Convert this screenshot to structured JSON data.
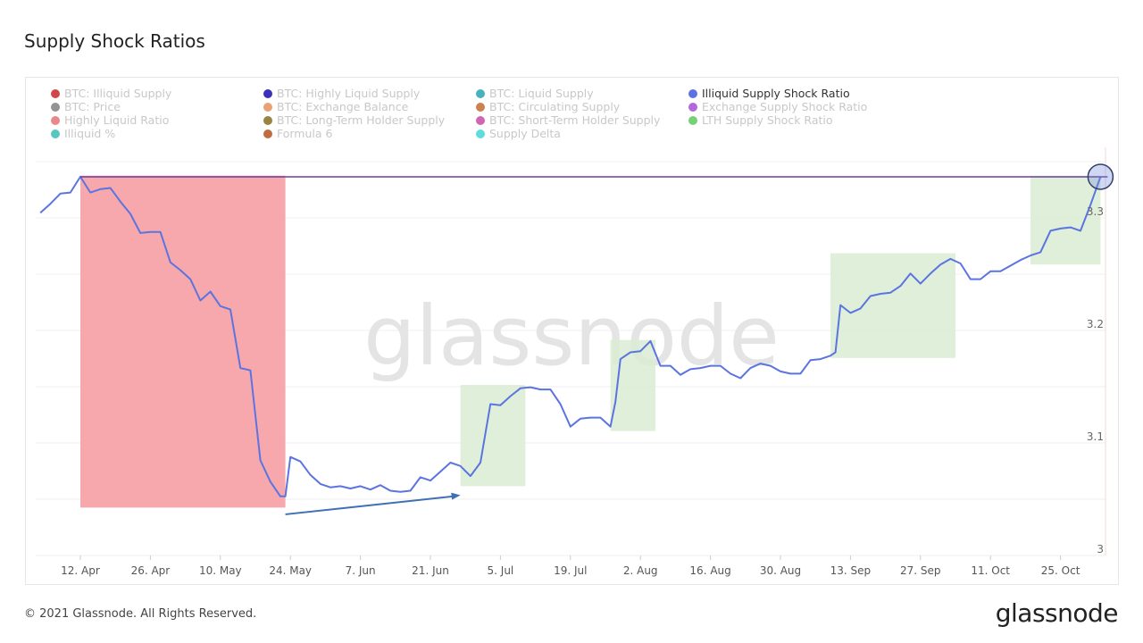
{
  "footer": {
    "copyright": "© 2021 Glassnode. All Rights Reserved.",
    "logo": "glassnode"
  },
  "watermark": "glassnode",
  "chart_data": {
    "type": "line",
    "title": "Supply Shock Ratios",
    "legend": [
      {
        "name": "BTC: Illiquid Supply",
        "color": "#c62828",
        "active": false
      },
      {
        "name": "BTC: Highly Liquid Supply",
        "color": "#1a0dab",
        "active": false
      },
      {
        "name": "BTC: Liquid Supply",
        "color": "#26a6b0",
        "active": false
      },
      {
        "name": "Illiquid Supply Shock Ratio",
        "color": "#5b74e0",
        "active": true
      },
      {
        "name": "BTC: Price",
        "color": "#808080",
        "active": false
      },
      {
        "name": "BTC: Exchange Balance",
        "color": "#e8905c",
        "active": false
      },
      {
        "name": "BTC: Circulating Supply",
        "color": "#c56a30",
        "active": false
      },
      {
        "name": "Exchange Supply Shock Ratio",
        "color": "#a64fd6",
        "active": false
      },
      {
        "name": "Highly Liquid Ratio",
        "color": "#e57373",
        "active": false
      },
      {
        "name": "BTC: Long-Term Holder Supply",
        "color": "#8a6d22",
        "active": false
      },
      {
        "name": "BTC: Short-Term Holder Supply",
        "color": "#c94aa5",
        "active": false
      },
      {
        "name": "LTH Supply Shock Ratio",
        "color": "#5cc95c",
        "active": false
      },
      {
        "name": "Illiquid %",
        "color": "#3bbdb5",
        "active": false
      },
      {
        "name": "Formula 6",
        "color": "#b5521f",
        "active": false
      },
      {
        "name": "Supply Delta",
        "color": "#45d6d6",
        "active": false
      }
    ],
    "legend_placement": "top",
    "x_ticks": [
      "12. Apr",
      "26. Apr",
      "10. May",
      "24. May",
      "7. Jun",
      "21. Jun",
      "5. Jul",
      "19. Jul",
      "2. Aug",
      "16. Aug",
      "30. Aug",
      "13. Sep",
      "27. Sep",
      "11. Oct",
      "25. Oct"
    ],
    "x_tick_dates": [
      "2021-04-12",
      "2021-04-26",
      "2021-05-10",
      "2021-05-24",
      "2021-06-07",
      "2021-06-21",
      "2021-07-05",
      "2021-07-19",
      "2021-08-02",
      "2021-08-16",
      "2021-08-30",
      "2021-09-13",
      "2021-09-27",
      "2021-10-11",
      "2021-10-25"
    ],
    "xlim": [
      "2021-04-04",
      "2021-11-03"
    ],
    "y_ticks": [
      "3",
      "3.1",
      "3.2",
      "3.3"
    ],
    "ylim": [
      3.0,
      3.36
    ],
    "y_axis_side": "right",
    "grid": true,
    "series": [
      {
        "name": "Illiquid Supply Shock Ratio",
        "color": "#5b74e0",
        "points": [
          [
            "2021-04-04",
            3.299
          ],
          [
            "2021-04-06",
            3.307
          ],
          [
            "2021-04-08",
            3.316
          ],
          [
            "2021-04-10",
            3.317
          ],
          [
            "2021-04-12",
            3.331
          ],
          [
            "2021-04-14",
            3.317
          ],
          [
            "2021-04-16",
            3.32
          ],
          [
            "2021-04-18",
            3.321
          ],
          [
            "2021-04-20",
            3.309
          ],
          [
            "2021-04-22",
            3.298
          ],
          [
            "2021-04-24",
            3.281
          ],
          [
            "2021-04-26",
            3.282
          ],
          [
            "2021-04-28",
            3.282
          ],
          [
            "2021-04-30",
            3.255
          ],
          [
            "2021-05-02",
            3.248
          ],
          [
            "2021-05-04",
            3.24
          ],
          [
            "2021-05-06",
            3.221
          ],
          [
            "2021-05-08",
            3.229
          ],
          [
            "2021-05-10",
            3.216
          ],
          [
            "2021-05-12",
            3.213
          ],
          [
            "2021-05-14",
            3.161
          ],
          [
            "2021-05-16",
            3.159
          ],
          [
            "2021-05-18",
            3.079
          ],
          [
            "2021-05-20",
            3.06
          ],
          [
            "2021-05-22",
            3.047
          ],
          [
            "2021-05-23",
            3.047
          ],
          [
            "2021-05-24",
            3.082
          ],
          [
            "2021-05-26",
            3.078
          ],
          [
            "2021-05-28",
            3.066
          ],
          [
            "2021-05-30",
            3.058
          ],
          [
            "2021-06-01",
            3.055
          ],
          [
            "2021-06-03",
            3.056
          ],
          [
            "2021-06-05",
            3.054
          ],
          [
            "2021-06-07",
            3.056
          ],
          [
            "2021-06-09",
            3.053
          ],
          [
            "2021-06-11",
            3.057
          ],
          [
            "2021-06-13",
            3.052
          ],
          [
            "2021-06-15",
            3.051
          ],
          [
            "2021-06-17",
            3.052
          ],
          [
            "2021-06-19",
            3.064
          ],
          [
            "2021-06-21",
            3.061
          ],
          [
            "2021-06-23",
            3.069
          ],
          [
            "2021-06-25",
            3.077
          ],
          [
            "2021-06-27",
            3.074
          ],
          [
            "2021-06-29",
            3.065
          ],
          [
            "2021-07-01",
            3.077
          ],
          [
            "2021-07-03",
            3.129
          ],
          [
            "2021-07-05",
            3.128
          ],
          [
            "2021-07-07",
            3.136
          ],
          [
            "2021-07-09",
            3.143
          ],
          [
            "2021-07-11",
            3.144
          ],
          [
            "2021-07-13",
            3.142
          ],
          [
            "2021-07-15",
            3.142
          ],
          [
            "2021-07-17",
            3.129
          ],
          [
            "2021-07-19",
            3.109
          ],
          [
            "2021-07-21",
            3.116
          ],
          [
            "2021-07-23",
            3.117
          ],
          [
            "2021-07-25",
            3.117
          ],
          [
            "2021-07-27",
            3.109
          ],
          [
            "2021-07-28",
            3.131
          ],
          [
            "2021-07-29",
            3.169
          ],
          [
            "2021-07-31",
            3.175
          ],
          [
            "2021-08-02",
            3.176
          ],
          [
            "2021-08-04",
            3.185
          ],
          [
            "2021-08-06",
            3.163
          ],
          [
            "2021-08-08",
            3.163
          ],
          [
            "2021-08-10",
            3.155
          ],
          [
            "2021-08-12",
            3.16
          ],
          [
            "2021-08-14",
            3.161
          ],
          [
            "2021-08-16",
            3.163
          ],
          [
            "2021-08-18",
            3.163
          ],
          [
            "2021-08-20",
            3.156
          ],
          [
            "2021-08-22",
            3.152
          ],
          [
            "2021-08-24",
            3.161
          ],
          [
            "2021-08-26",
            3.165
          ],
          [
            "2021-08-28",
            3.163
          ],
          [
            "2021-08-30",
            3.158
          ],
          [
            "2021-09-01",
            3.156
          ],
          [
            "2021-09-03",
            3.156
          ],
          [
            "2021-09-05",
            3.168
          ],
          [
            "2021-09-07",
            3.169
          ],
          [
            "2021-09-09",
            3.172
          ],
          [
            "2021-09-10",
            3.175
          ],
          [
            "2021-09-11",
            3.217
          ],
          [
            "2021-09-13",
            3.21
          ],
          [
            "2021-09-15",
            3.214
          ],
          [
            "2021-09-17",
            3.225
          ],
          [
            "2021-09-19",
            3.227
          ],
          [
            "2021-09-21",
            3.228
          ],
          [
            "2021-09-23",
            3.234
          ],
          [
            "2021-09-25",
            3.245
          ],
          [
            "2021-09-27",
            3.236
          ],
          [
            "2021-09-29",
            3.245
          ],
          [
            "2021-10-01",
            3.253
          ],
          [
            "2021-10-03",
            3.258
          ],
          [
            "2021-10-05",
            3.254
          ],
          [
            "2021-10-07",
            3.24
          ],
          [
            "2021-10-09",
            3.24
          ],
          [
            "2021-10-11",
            3.247
          ],
          [
            "2021-10-13",
            3.247
          ],
          [
            "2021-10-15",
            3.252
          ],
          [
            "2021-10-17",
            3.257
          ],
          [
            "2021-10-19",
            3.261
          ],
          [
            "2021-10-21",
            3.264
          ],
          [
            "2021-10-23",
            3.283
          ],
          [
            "2021-10-25",
            3.285
          ],
          [
            "2021-10-27",
            3.286
          ],
          [
            "2021-10-29",
            3.283
          ],
          [
            "2021-10-31",
            3.306
          ],
          [
            "2021-11-02",
            3.331
          ]
        ]
      }
    ],
    "annotations": {
      "red_box": {
        "x": [
          "2021-04-12",
          "2021-05-23"
        ],
        "y": [
          3.037,
          3.332
        ],
        "color": "#f7a8ad"
      },
      "green_boxes": [
        {
          "x": [
            "2021-06-27",
            "2021-07-10"
          ],
          "y": [
            3.056,
            3.146
          ]
        },
        {
          "x": [
            "2021-07-27",
            "2021-08-05"
          ],
          "y": [
            3.105,
            3.186
          ]
        },
        {
          "x": [
            "2021-09-09",
            "2021-10-04"
          ],
          "y": [
            3.17,
            3.263
          ]
        },
        {
          "x": [
            "2021-10-19",
            "2021-11-02"
          ],
          "y": [
            3.253,
            3.332
          ]
        }
      ],
      "green_color": "#d9ecd3",
      "high_line": {
        "y": 3.331,
        "x": [
          "2021-04-12",
          "2021-11-02"
        ],
        "color": "#6b3fa0"
      },
      "circle": {
        "x": "2021-11-02",
        "y": 3.331
      },
      "arrow": {
        "from": [
          "2021-05-23",
          3.031
        ],
        "to": [
          "2021-06-27",
          3.048
        ],
        "color": "#3f6fb5"
      }
    }
  }
}
